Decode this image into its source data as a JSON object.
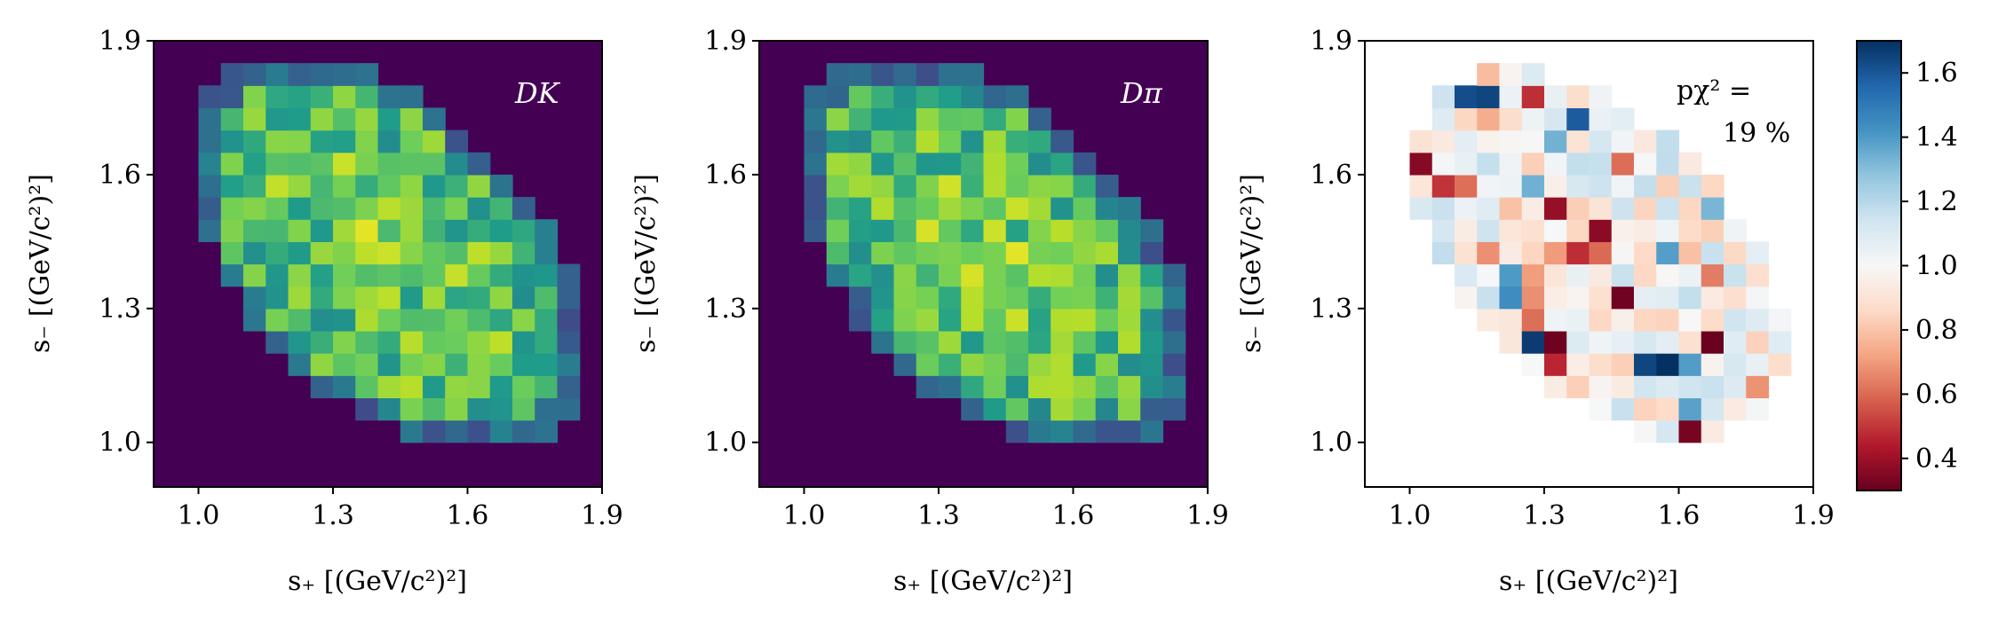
{
  "chart_data": [
    {
      "type": "heatmap",
      "panel": "DK",
      "label": "DK",
      "colormap": "viridis",
      "xlabel": "s₊ [(GeV/c²)²]",
      "ylabel": "s₋ [(GeV/c²)²]",
      "xlim": [
        0.9,
        1.9
      ],
      "ylim": [
        0.9,
        1.9
      ],
      "xticks": [
        "1.0",
        "1.3",
        "1.6",
        "1.9"
      ],
      "yticks": [
        "1.0",
        "1.3",
        "1.6",
        "1.9"
      ],
      "bins": 20,
      "values": "smooth elliptical density (Dalitz-plot population) concentrated along the anti-diagonal, empty outside the kinematic boundary"
    },
    {
      "type": "heatmap",
      "panel": "Dpi",
      "label": "Dπ",
      "colormap": "viridis",
      "xlabel": "s₊ [(GeV/c²)²]",
      "ylabel": "s₋ [(GeV/c²)²]",
      "xlim": [
        0.9,
        1.9
      ],
      "ylim": [
        0.9,
        1.9
      ],
      "xticks": [
        "1.0",
        "1.3",
        "1.6",
        "1.9"
      ],
      "yticks": [
        "1.0",
        "1.3",
        "1.6",
        "1.9"
      ],
      "bins": 20,
      "values": "smooth elliptical density (Dalitz-plot population) concentrated along the anti-diagonal, empty outside the kinematic boundary"
    },
    {
      "type": "heatmap",
      "panel": "ratio",
      "colormap": "RdBu",
      "xlabel": "s₊ [(GeV/c²)²]",
      "ylabel": "s₋ [(GeV/c²)²]",
      "xlim": [
        0.9,
        1.9
      ],
      "ylim": [
        0.9,
        1.9
      ],
      "xticks": [
        "1.0",
        "1.3",
        "1.6",
        "1.9"
      ],
      "yticks": [
        "1.0",
        "1.3",
        "1.6",
        "1.9"
      ],
      "annotation_line1": "pχ² =",
      "annotation_line2": "19 %",
      "colorbar": {
        "range": [
          0.3,
          1.7
        ],
        "ticks": [
          "0.4",
          "0.6",
          "0.8",
          "1.0",
          "1.2",
          "1.4",
          "1.6"
        ]
      },
      "values": "per-bin ratio DK/Dπ, mostly near 1.0 with scattered outliers, blank outside the kinematic boundary"
    }
  ]
}
